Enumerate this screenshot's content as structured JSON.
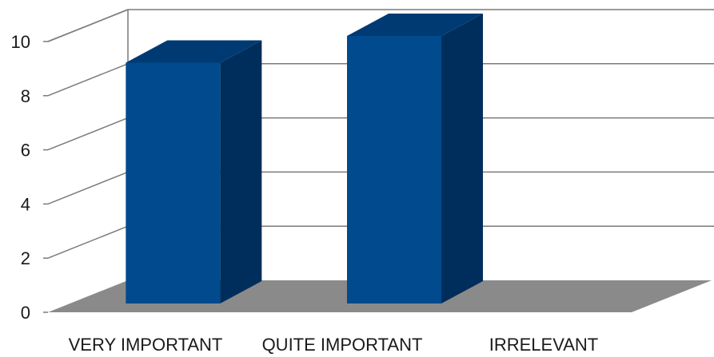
{
  "chart_data": {
    "type": "bar",
    "style": "3d-column",
    "categories": [
      "VERY IMPORTANT",
      "QUITE IMPORTANT",
      "IRRELEVANT"
    ],
    "values": [
      9,
      10,
      0
    ],
    "ylim": [
      0,
      10
    ],
    "yticks": [
      "0",
      "2",
      "4",
      "6",
      "8",
      "10"
    ],
    "grid": true,
    "legend": "none",
    "colors": {
      "bar_front": "#004a8d",
      "bar_side": "#002e5c",
      "bar_top": "#003a73",
      "floor": "#8a8a8a",
      "grid": "#7a7a7a"
    }
  }
}
